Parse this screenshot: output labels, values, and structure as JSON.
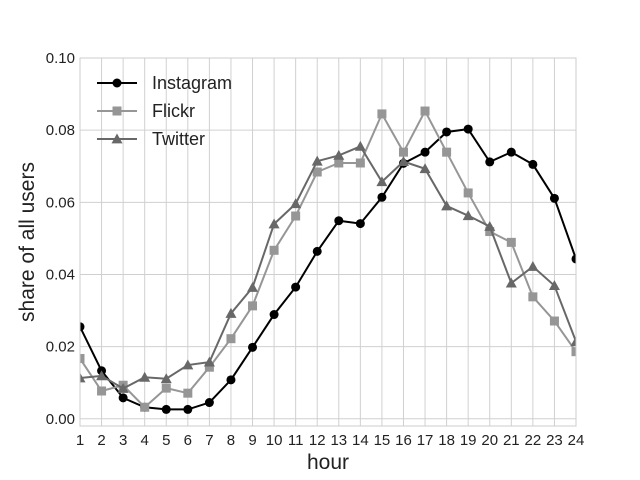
{
  "chart_data": {
    "type": "line",
    "title": "",
    "xlabel": "hour",
    "ylabel": "share of all users",
    "xlim": [
      1,
      24
    ],
    "ylim": [
      -0.002,
      0.1
    ],
    "x": [
      1,
      2,
      3,
      4,
      5,
      6,
      7,
      8,
      9,
      10,
      11,
      12,
      13,
      14,
      15,
      16,
      17,
      18,
      19,
      20,
      21,
      22,
      23,
      24
    ],
    "xticks": [
      "1",
      "2",
      "3",
      "4",
      "5",
      "6",
      "7",
      "8",
      "9",
      "10",
      "11",
      "12",
      "13",
      "14",
      "15",
      "16",
      "17",
      "18",
      "19",
      "20",
      "21",
      "22",
      "23",
      "24"
    ],
    "yticks": [
      0.0,
      0.02,
      0.04,
      0.06,
      0.08,
      0.1
    ],
    "ytick_labels": [
      "0.00",
      "0.02",
      "0.04",
      "0.06",
      "0.08",
      "0.10"
    ],
    "grid": true,
    "legend_position": "top-left",
    "series": [
      {
        "name": "Instagram",
        "color": "#000000",
        "marker": "circle",
        "values": [
          0.0255,
          0.0133,
          0.0058,
          0.0032,
          0.0026,
          0.0026,
          0.0045,
          0.0108,
          0.0198,
          0.0289,
          0.0365,
          0.0464,
          0.0549,
          0.0541,
          0.0614,
          0.0708,
          0.0739,
          0.0795,
          0.0803,
          0.0712,
          0.0739,
          0.0705,
          0.0611,
          0.0443
        ]
      },
      {
        "name": "Flickr",
        "color": "#969696",
        "marker": "square",
        "values": [
          0.0167,
          0.0077,
          0.0093,
          0.0032,
          0.0085,
          0.0071,
          0.0143,
          0.0222,
          0.0313,
          0.0467,
          0.0562,
          0.0684,
          0.0709,
          0.0709,
          0.0845,
          0.0739,
          0.0853,
          0.0739,
          0.0626,
          0.0519,
          0.0489,
          0.0338,
          0.0271,
          0.0186
        ]
      },
      {
        "name": "Twitter",
        "color": "#686868",
        "marker": "triangle",
        "values": [
          0.0113,
          0.0119,
          0.0084,
          0.0115,
          0.0111,
          0.0149,
          0.0157,
          0.0292,
          0.0364,
          0.054,
          0.0596,
          0.0714,
          0.073,
          0.0755,
          0.0657,
          0.0713,
          0.0693,
          0.059,
          0.0563,
          0.0533,
          0.0376,
          0.0422,
          0.0369,
          0.0214
        ]
      }
    ]
  }
}
